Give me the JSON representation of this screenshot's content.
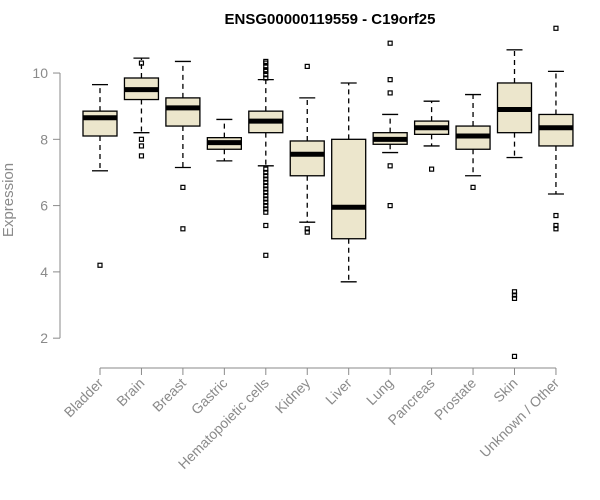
{
  "chart_data": {
    "type": "boxplot",
    "title": "ENSG00000119559 - C19orf25",
    "xlabel": "",
    "ylabel": "Expression",
    "ylim": [
      1.1,
      11.6
    ],
    "yticks": [
      2,
      4,
      6,
      8,
      10
    ],
    "grid": false,
    "fill_color": "#ece6cc",
    "categories": [
      "Bladder",
      "Brain",
      "Breast",
      "Gastric",
      "Hematopoietic cells",
      "Kidney",
      "Liver",
      "Lung",
      "Pancreas",
      "Prostate",
      "Skin",
      "Unknown / Other"
    ],
    "boxes": [
      {
        "label": "Bladder",
        "whisker_low": 7.05,
        "q1": 8.1,
        "median": 8.65,
        "q3": 8.85,
        "whisker_high": 9.65,
        "outliers": [
          4.2
        ]
      },
      {
        "label": "Brain",
        "whisker_low": 8.2,
        "q1": 9.2,
        "median": 9.5,
        "q3": 9.85,
        "whisker_high": 10.45,
        "outliers": [
          7.5,
          7.8,
          8.0,
          10.3
        ]
      },
      {
        "label": "Breast",
        "whisker_low": 7.15,
        "q1": 8.4,
        "median": 8.95,
        "q3": 9.25,
        "whisker_high": 10.35,
        "outliers": [
          5.3,
          6.55
        ]
      },
      {
        "label": "Gastric",
        "whisker_low": 7.35,
        "q1": 7.7,
        "median": 7.9,
        "q3": 8.05,
        "whisker_high": 8.6,
        "outliers": []
      },
      {
        "label": "Hematopoietic cells",
        "whisker_low": 7.2,
        "q1": 8.2,
        "median": 8.55,
        "q3": 8.85,
        "whisker_high": 9.8,
        "outliers": [
          4.5,
          5.4,
          5.8,
          5.9,
          6.0,
          6.1,
          6.2,
          6.3,
          6.4,
          6.5,
          6.6,
          6.7,
          6.8,
          6.9,
          7.0,
          7.1,
          9.85,
          9.95,
          10.05,
          10.1,
          10.2,
          10.3,
          10.35
        ]
      },
      {
        "label": "Kidney",
        "whisker_low": 5.5,
        "q1": 6.9,
        "median": 7.55,
        "q3": 7.95,
        "whisker_high": 9.25,
        "outliers": [
          5.2,
          5.3,
          10.2
        ]
      },
      {
        "label": "Liver",
        "whisker_low": 3.7,
        "q1": 5.0,
        "median": 5.95,
        "q3": 8.0,
        "whisker_high": 9.7,
        "outliers": []
      },
      {
        "label": "Lung",
        "whisker_low": 7.6,
        "q1": 7.85,
        "median": 8.0,
        "q3": 8.2,
        "whisker_high": 8.75,
        "outliers": [
          6.0,
          7.2,
          9.4,
          9.8,
          10.9
        ]
      },
      {
        "label": "Pancreas",
        "whisker_low": 7.8,
        "q1": 8.15,
        "median": 8.35,
        "q3": 8.55,
        "whisker_high": 9.15,
        "outliers": [
          7.1
        ]
      },
      {
        "label": "Prostate",
        "whisker_low": 6.9,
        "q1": 7.7,
        "median": 8.1,
        "q3": 8.4,
        "whisker_high": 9.35,
        "outliers": [
          6.55
        ]
      },
      {
        "label": "Skin",
        "whisker_low": 7.45,
        "q1": 8.2,
        "median": 8.9,
        "q3": 9.7,
        "whisker_high": 10.7,
        "outliers": [
          1.45,
          3.2,
          3.3,
          3.4
        ]
      },
      {
        "label": "Unknown / Other",
        "whisker_low": 6.35,
        "q1": 7.8,
        "median": 8.35,
        "q3": 8.75,
        "whisker_high": 10.05,
        "outliers": [
          5.3,
          5.4,
          5.7,
          11.35
        ]
      }
    ]
  }
}
